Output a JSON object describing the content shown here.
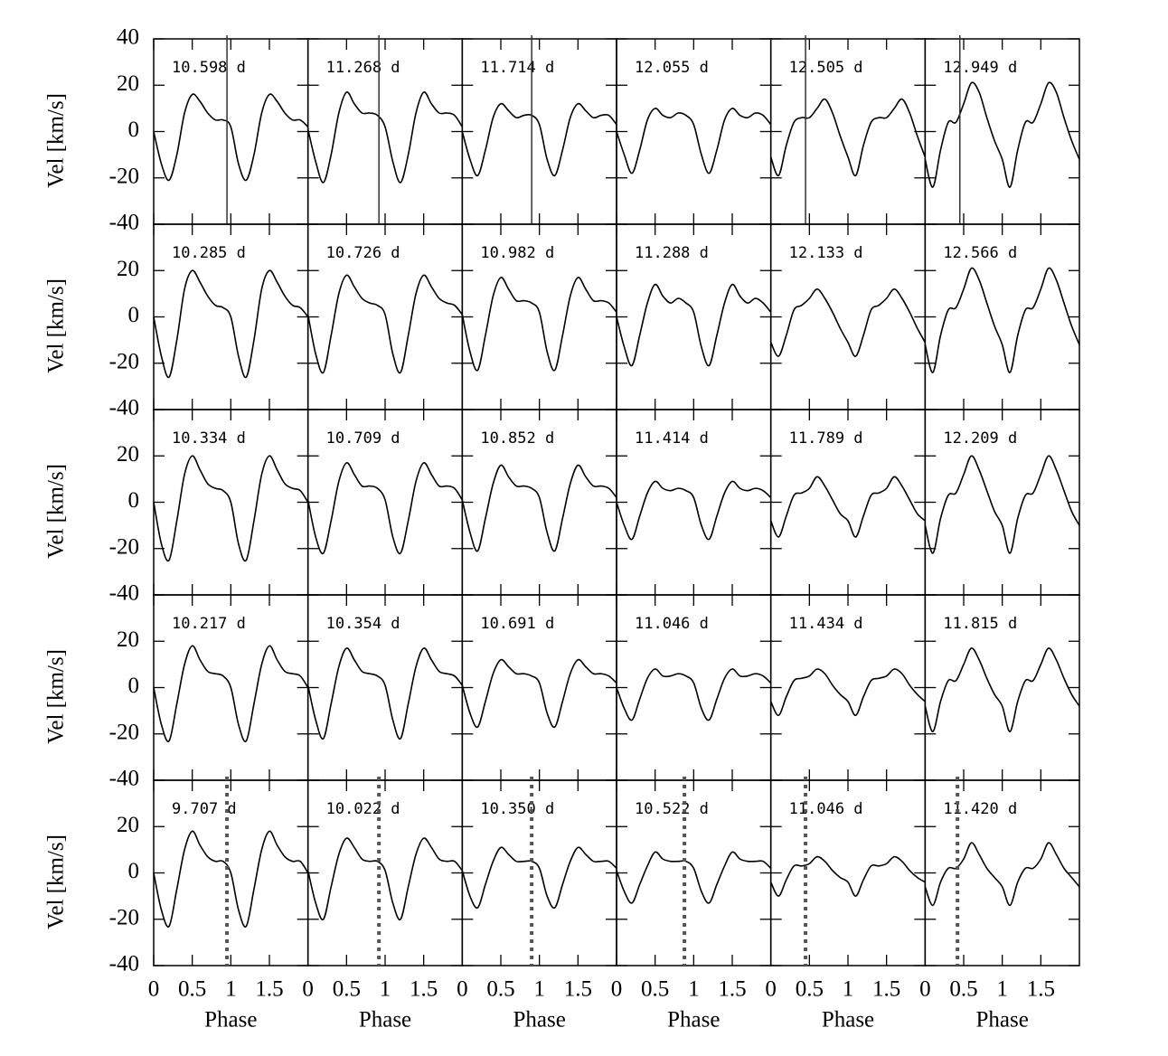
{
  "chart_data": {
    "type": "line",
    "x": [
      0,
      0.1,
      0.2,
      0.3,
      0.4,
      0.5,
      0.6,
      0.7,
      0.8,
      0.9,
      1,
      1.1,
      1.2,
      1.3,
      1.4,
      1.5,
      1.6,
      1.7,
      1.8,
      1.9,
      2
    ],
    "xlim": [
      0,
      2
    ],
    "ylim": [
      -40,
      40
    ],
    "xticks": [
      0,
      0.5,
      1,
      1.5
    ],
    "yticks": [
      -40,
      -20,
      0,
      20,
      40
    ],
    "xlabel": "Phase",
    "ylabel": "Vel [km/s]",
    "color": "#000000",
    "panels": [
      {
        "label": "10.598 d",
        "values": [
          0,
          -14,
          -21,
          -10,
          8,
          16,
          13,
          8,
          5,
          5,
          2,
          -14,
          -21,
          -10,
          8,
          16,
          13,
          8,
          5,
          5,
          2
        ],
        "vline": {
          "value": 0.95,
          "style": "solid"
        }
      },
      {
        "label": "11.268 d",
        "values": [
          1,
          -13,
          -22,
          -10,
          8,
          17,
          12,
          8,
          8,
          7,
          2,
          -13,
          -22,
          -10,
          8,
          17,
          12,
          8,
          8,
          7,
          2
        ],
        "vline": {
          "value": 0.92,
          "style": "solid"
        }
      },
      {
        "label": "11.714 d",
        "values": [
          0,
          -12,
          -19,
          -8,
          6,
          12,
          9,
          6,
          7,
          7,
          3,
          -12,
          -19,
          -8,
          6,
          12,
          9,
          6,
          7,
          7,
          3
        ],
        "vline": {
          "value": 0.9,
          "style": "solid"
        }
      },
      {
        "label": "12.055 d",
        "values": [
          0,
          -10,
          -18,
          -8,
          5,
          10,
          7,
          6,
          8,
          7,
          3,
          -10,
          -18,
          -8,
          5,
          10,
          7,
          6,
          8,
          7,
          3
        ]
      },
      {
        "label": "12.505 d",
        "values": [
          -11,
          -19,
          -6,
          4,
          6,
          6,
          10,
          14,
          8,
          -2,
          -11,
          -19,
          -6,
          4,
          6,
          6,
          10,
          14,
          8,
          -2,
          -11
        ],
        "vline": {
          "value": 0.45,
          "style": "solid"
        }
      },
      {
        "label": "12.949 d",
        "values": [
          -12,
          -24,
          -8,
          4,
          4,
          12,
          21,
          17,
          6,
          -4,
          -12,
          -24,
          -8,
          4,
          4,
          12,
          21,
          17,
          6,
          -4,
          -12
        ],
        "vline": {
          "value": 0.45,
          "style": "solid"
        }
      },
      {
        "label": "10.285 d",
        "values": [
          0,
          -17,
          -26,
          -10,
          12,
          20,
          15,
          9,
          5,
          4,
          0,
          -17,
          -26,
          -10,
          12,
          20,
          15,
          9,
          5,
          4,
          0
        ]
      },
      {
        "label": "10.726 d",
        "values": [
          1,
          -16,
          -24,
          -8,
          10,
          18,
          13,
          8,
          6,
          5,
          1,
          -16,
          -24,
          -8,
          10,
          18,
          13,
          8,
          6,
          5,
          1
        ]
      },
      {
        "label": "10.982 d",
        "values": [
          1,
          -15,
          -23,
          -8,
          9,
          17,
          12,
          7,
          7,
          6,
          2,
          -15,
          -23,
          -8,
          9,
          17,
          12,
          7,
          7,
          6,
          2
        ]
      },
      {
        "label": "11.288 d",
        "values": [
          0,
          -13,
          -21,
          -8,
          6,
          14,
          9,
          6,
          8,
          6,
          2,
          -13,
          -21,
          -8,
          6,
          14,
          9,
          6,
          8,
          6,
          2
        ]
      },
      {
        "label": "12.133 d",
        "values": [
          -11,
          -17,
          -8,
          3,
          5,
          8,
          12,
          8,
          2,
          -5,
          -11,
          -17,
          -8,
          3,
          5,
          8,
          12,
          8,
          2,
          -5,
          -11
        ]
      },
      {
        "label": "12.566 d",
        "values": [
          -12,
          -24,
          -8,
          3,
          4,
          12,
          21,
          16,
          6,
          -4,
          -12,
          -24,
          -8,
          3,
          4,
          12,
          21,
          16,
          6,
          -4,
          -12
        ]
      },
      {
        "label": "10.334 d",
        "values": [
          0,
          -18,
          -25,
          -8,
          12,
          20,
          14,
          8,
          6,
          5,
          0,
          -18,
          -25,
          -8,
          12,
          20,
          14,
          8,
          6,
          5,
          0
        ]
      },
      {
        "label": "10.709 d",
        "values": [
          1,
          -15,
          -22,
          -8,
          9,
          17,
          12,
          7,
          7,
          6,
          1,
          -15,
          -22,
          -8,
          9,
          17,
          12,
          7,
          7,
          6,
          1
        ]
      },
      {
        "label": "10.852 d",
        "values": [
          1,
          -13,
          -21,
          -7,
          8,
          16,
          11,
          7,
          7,
          6,
          2,
          -13,
          -21,
          -7,
          8,
          16,
          11,
          7,
          7,
          6,
          2
        ]
      },
      {
        "label": "11.414 d",
        "values": [
          0,
          -10,
          -16,
          -6,
          4,
          9,
          6,
          5,
          6,
          5,
          2,
          -10,
          -16,
          -6,
          4,
          9,
          6,
          5,
          6,
          5,
          2
        ]
      },
      {
        "label": "11.789 d",
        "values": [
          -8,
          -15,
          -6,
          3,
          4,
          6,
          11,
          7,
          1,
          -5,
          -8,
          -15,
          -6,
          3,
          4,
          6,
          11,
          7,
          1,
          -5,
          -8
        ]
      },
      {
        "label": "12.209 d",
        "values": [
          -10,
          -22,
          -7,
          3,
          4,
          12,
          20,
          14,
          5,
          -4,
          -10,
          -22,
          -7,
          3,
          4,
          12,
          20,
          14,
          5,
          -4,
          -10
        ]
      },
      {
        "label": "10.217 d",
        "values": [
          0,
          -16,
          -23,
          -7,
          10,
          18,
          12,
          7,
          6,
          5,
          0,
          -16,
          -23,
          -7,
          10,
          18,
          12,
          7,
          6,
          5,
          0
        ]
      },
      {
        "label": "10.354 d",
        "values": [
          1,
          -14,
          -22,
          -7,
          9,
          17,
          12,
          7,
          6,
          5,
          1,
          -14,
          -22,
          -7,
          9,
          17,
          12,
          7,
          6,
          5,
          1
        ]
      },
      {
        "label": "10.691 d",
        "values": [
          1,
          -11,
          -17,
          -6,
          6,
          12,
          9,
          6,
          6,
          5,
          2,
          -11,
          -17,
          -6,
          6,
          12,
          9,
          6,
          6,
          5,
          2
        ]
      },
      {
        "label": "11.046 d",
        "values": [
          0,
          -9,
          -14,
          -5,
          4,
          8,
          5,
          5,
          6,
          5,
          2,
          -9,
          -14,
          -5,
          4,
          8,
          5,
          5,
          6,
          5,
          2
        ]
      },
      {
        "label": "11.434 d",
        "values": [
          -6,
          -12,
          -4,
          3,
          4,
          5,
          8,
          6,
          1,
          -3,
          -6,
          -12,
          -4,
          3,
          4,
          5,
          8,
          6,
          1,
          -3,
          -6
        ]
      },
      {
        "label": "11.815 d",
        "values": [
          -8,
          -19,
          -6,
          3,
          3,
          10,
          17,
          12,
          4,
          -3,
          -8,
          -19,
          -6,
          3,
          3,
          10,
          17,
          12,
          4,
          -3,
          -8
        ]
      },
      {
        "label": "9.707 d",
        "values": [
          0,
          -16,
          -23,
          -7,
          10,
          18,
          12,
          7,
          5,
          5,
          0,
          -16,
          -23,
          -7,
          10,
          18,
          12,
          7,
          5,
          5,
          0
        ],
        "vline": {
          "value": 0.95,
          "style": "dotted"
        }
      },
      {
        "label": "10.022 d",
        "values": [
          1,
          -13,
          -20,
          -6,
          8,
          15,
          11,
          6,
          5,
          5,
          1,
          -13,
          -20,
          -6,
          8,
          15,
          11,
          6,
          5,
          5,
          1
        ],
        "vline": {
          "value": 0.92,
          "style": "dotted"
        }
      },
      {
        "label": "10.350 d",
        "values": [
          1,
          -10,
          -15,
          -5,
          5,
          11,
          8,
          5,
          5,
          5,
          2,
          -10,
          -15,
          -5,
          5,
          11,
          8,
          5,
          5,
          5,
          2
        ],
        "vline": {
          "value": 0.9,
          "style": "dotted"
        }
      },
      {
        "label": "10.522 d",
        "values": [
          1,
          -8,
          -13,
          -5,
          3,
          9,
          6,
          5,
          5,
          5,
          2,
          -8,
          -13,
          -5,
          3,
          9,
          6,
          5,
          5,
          5,
          2
        ],
        "vline": {
          "value": 0.88,
          "style": "dotted"
        }
      },
      {
        "label": "11.046 d",
        "values": [
          -4,
          -10,
          -3,
          3,
          3,
          4,
          7,
          5,
          1,
          -2,
          -4,
          -10,
          -3,
          3,
          3,
          4,
          7,
          5,
          1,
          -2,
          -4
        ],
        "vline": {
          "value": 0.45,
          "style": "dotted"
        }
      },
      {
        "label": "11.420 d",
        "values": [
          -6,
          -14,
          -4,
          2,
          2,
          6,
          13,
          8,
          2,
          -2,
          -6,
          -14,
          -4,
          2,
          2,
          6,
          13,
          8,
          2,
          -2,
          -6
        ],
        "vline": {
          "value": 0.42,
          "style": "dotted"
        }
      }
    ]
  }
}
